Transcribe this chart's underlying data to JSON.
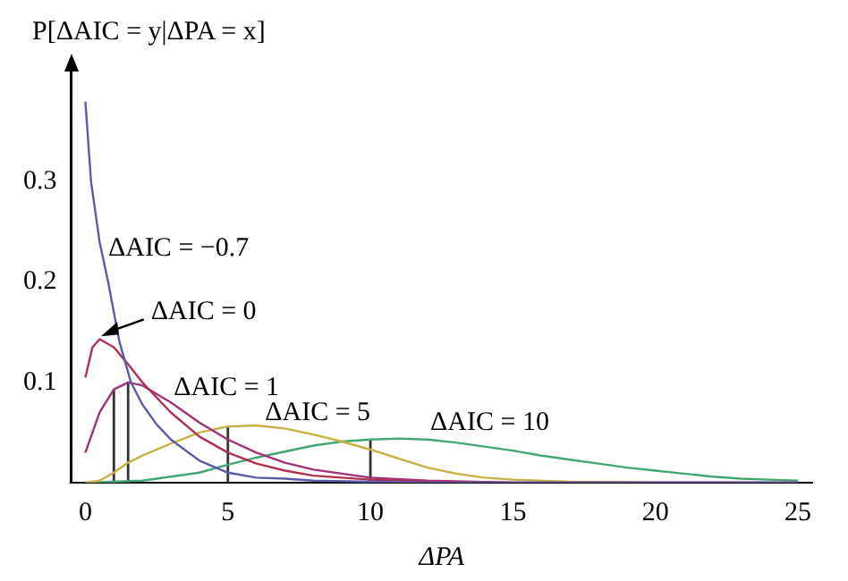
{
  "chart_data": {
    "type": "line",
    "xlabel": "ΔPA",
    "ylabel": "P[ΔAIC = y|ΔPA = x]",
    "xlim": [
      -0.5,
      25.5
    ],
    "ylim": [
      0,
      0.41
    ],
    "xticks": [
      0,
      5,
      10,
      15,
      20,
      25
    ],
    "yticks": [
      0.1,
      0.2,
      0.3
    ],
    "grid": false,
    "legend": false,
    "marker": "none",
    "series": [
      {
        "name": "ΔAIC = −0.7",
        "color": "#5a5aa8",
        "x": [
          0,
          0.2,
          0.5,
          0.8,
          1.2,
          1.6,
          2,
          2.5,
          3,
          4,
          5,
          6,
          7,
          8,
          10,
          12,
          25
        ],
        "values": [
          0.38,
          0.3,
          0.24,
          0.2,
          0.14,
          0.1,
          0.078,
          0.058,
          0.043,
          0.022,
          0.01,
          0.005,
          0.004,
          0.002,
          0.001,
          0,
          0
        ]
      },
      {
        "name": "ΔAIC = 0",
        "color": "#b03050",
        "x": [
          0,
          0.25,
          0.5,
          1,
          1.5,
          2,
          3,
          4,
          5,
          6,
          7,
          8,
          10,
          12,
          15,
          25
        ],
        "values": [
          0.105,
          0.135,
          0.143,
          0.135,
          0.118,
          0.1,
          0.07,
          0.046,
          0.03,
          0.019,
          0.012,
          0.007,
          0.003,
          0.001,
          0,
          0
        ]
      },
      {
        "name": "ΔAIC = 1",
        "color": "#a0307a",
        "x": [
          0,
          0.5,
          1,
          1.5,
          2,
          3,
          4,
          5,
          6,
          7,
          8,
          10,
          12,
          15,
          25
        ],
        "values": [
          0.03,
          0.07,
          0.093,
          0.1,
          0.097,
          0.08,
          0.06,
          0.043,
          0.03,
          0.02,
          0.013,
          0.005,
          0.002,
          0,
          0
        ]
      },
      {
        "name": "ΔAIC = 5",
        "color": "#c8b040",
        "x": [
          0,
          0.5,
          1,
          1.5,
          2,
          3,
          4,
          5,
          6,
          7,
          8,
          9,
          10,
          11,
          12,
          13,
          14,
          15,
          17,
          20,
          25
        ],
        "values": [
          0,
          0.002,
          0.01,
          0.02,
          0.027,
          0.039,
          0.05,
          0.056,
          0.057,
          0.054,
          0.048,
          0.041,
          0.033,
          0.024,
          0.015,
          0.009,
          0.005,
          0.003,
          0.001,
          0,
          0
        ]
      },
      {
        "name": "ΔAIC = 10",
        "color": "#40a870",
        "x": [
          0,
          2,
          4,
          5,
          6,
          7,
          8,
          9,
          10,
          11,
          12,
          13,
          14,
          15,
          16,
          17,
          18,
          19,
          20,
          21,
          22,
          23,
          24,
          25
        ],
        "values": [
          0,
          0.002,
          0.01,
          0.018,
          0.025,
          0.031,
          0.037,
          0.041,
          0.043,
          0.044,
          0.043,
          0.04,
          0.036,
          0.032,
          0.027,
          0.023,
          0.019,
          0.015,
          0.012,
          0.009,
          0.006,
          0.004,
          0.003,
          0.002
        ]
      },
      {
        "color": "#333333",
        "x": [
          1,
          1
        ],
        "values": [
          0,
          0.093
        ]
      },
      {
        "color": "#333333",
        "x": [
          1.5,
          1.5
        ],
        "values": [
          0,
          0.1
        ]
      },
      {
        "color": "#333333",
        "x": [
          5,
          5
        ],
        "values": [
          0,
          0.056
        ]
      },
      {
        "color": "#333333",
        "x": [
          10,
          10
        ],
        "values": [
          0,
          0.043
        ]
      }
    ]
  }
}
